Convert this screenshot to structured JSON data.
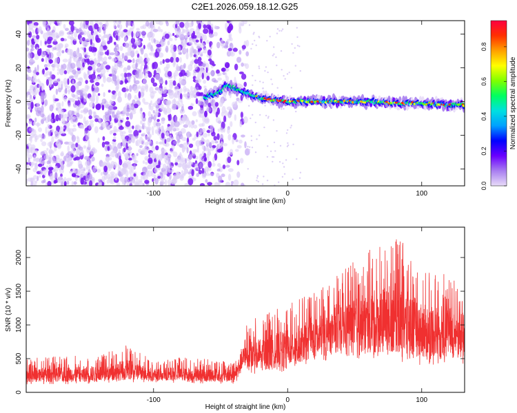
{
  "title": "C2E1.2026.059.18.12.G25",
  "chart_data": [
    {
      "type": "heatmap",
      "xlabel": "Height of straight line (km)",
      "ylabel": "Frequency (Hz)",
      "xlim": [
        -195,
        132
      ],
      "ylim": [
        -50,
        48
      ],
      "xticks": [
        -100,
        0,
        100
      ],
      "yticks": [
        -40,
        -20,
        0,
        20,
        40
      ],
      "ridge": {
        "description_points_x": [
          -60,
          -50,
          -45,
          -40,
          -30,
          -20,
          0,
          20,
          40,
          60,
          80,
          100,
          120,
          132
        ],
        "description_points_y": [
          3,
          6,
          10,
          8,
          5,
          2,
          0,
          0,
          0,
          0,
          -1,
          -1,
          -2,
          -2
        ]
      },
      "colorbar": {
        "label": "Normalized spectral amplitude",
        "ticks": [
          "0.0",
          "0.2",
          "0.4",
          "0.6",
          "0.8"
        ],
        "range": [
          0,
          0.95
        ],
        "colors": [
          "#e8dcf8",
          "#a87ef0",
          "#6a00ff",
          "#0000ff",
          "#00a0ff",
          "#00e0e0",
          "#00ff60",
          "#80ff00",
          "#ffff00",
          "#ffa000",
          "#ff3000",
          "#ff0040"
        ]
      }
    },
    {
      "type": "line",
      "xlabel": "Height of straight line (km)",
      "ylabel": "SNR (10 * v/v)",
      "xlim": [
        -195,
        132
      ],
      "ylim": [
        0,
        2450
      ],
      "xticks": [
        -100,
        0,
        100
      ],
      "yticks": [
        0,
        500,
        1000,
        1500,
        2000
      ],
      "color": "#f03030",
      "envelope": {
        "x": [
          -195,
          -160,
          -140,
          -120,
          -100,
          -80,
          -60,
          -50,
          -40,
          -32,
          -20,
          0,
          20,
          40,
          60,
          80,
          100,
          120,
          132
        ],
        "low": [
          120,
          120,
          130,
          140,
          150,
          140,
          130,
          130,
          120,
          300,
          250,
          320,
          420,
          500,
          450,
          450,
          400,
          400,
          400
        ],
        "high": [
          520,
          540,
          560,
          700,
          480,
          520,
          500,
          480,
          460,
          1000,
          1150,
          1300,
          1500,
          1800,
          2100,
          2350,
          1900,
          1800,
          1700
        ]
      }
    }
  ]
}
